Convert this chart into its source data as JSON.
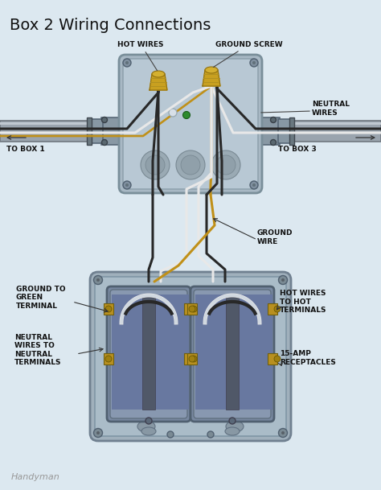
{
  "title": "Box 2 Wiring Connections",
  "title_fontsize": 14,
  "bg_color": "#dce8f0",
  "brand": "Handyman",
  "brand_color": "#999999",
  "labels": {
    "hot_wires": "HOT WIRES",
    "ground_screw": "GROUND SCREW",
    "neutral_wires": "NEUTRAL\nWIRES",
    "to_box1": "TO BOX 1",
    "to_box3": "TO BOX 3",
    "ground_wire": "GROUND\nWIRE",
    "ground_to_green": "GROUND TO\nGREEN\nTERMINAL",
    "hot_wires_to": "HOT WIRES\nTO HOT\nTERMINALS",
    "neutral_wires_to": "NEUTRAL\nWIRES TO\nNEUTRAL\nTERMINALS",
    "receptacles": "15-AMP\nRECEPTACLES"
  },
  "colors": {
    "box_fill": "#a8b8c4",
    "box_fill2": "#b8c8d4",
    "box_edge": "#7a8f9a",
    "pipe_fill": "#9aa4ae",
    "pipe_edge": "#707880",
    "pipe_light": "#c0c8d0",
    "connector_fill": "#8898a4",
    "wire_black": "#282828",
    "wire_dark": "#3a3a3a",
    "wire_white": "#e8e8e8",
    "wire_ground": "#c09018",
    "nut_gold": "#c8a020",
    "nut_dark": "#907010",
    "green_dot": "#2e8b2e",
    "label_color": "#111111",
    "rec_body": "#8090a0",
    "rec_light": "#a0b0c0",
    "rec_dark": "#506070",
    "rec_slot": "#303040",
    "terminal_gold": "#b89020",
    "screw_gray": "#708090"
  }
}
